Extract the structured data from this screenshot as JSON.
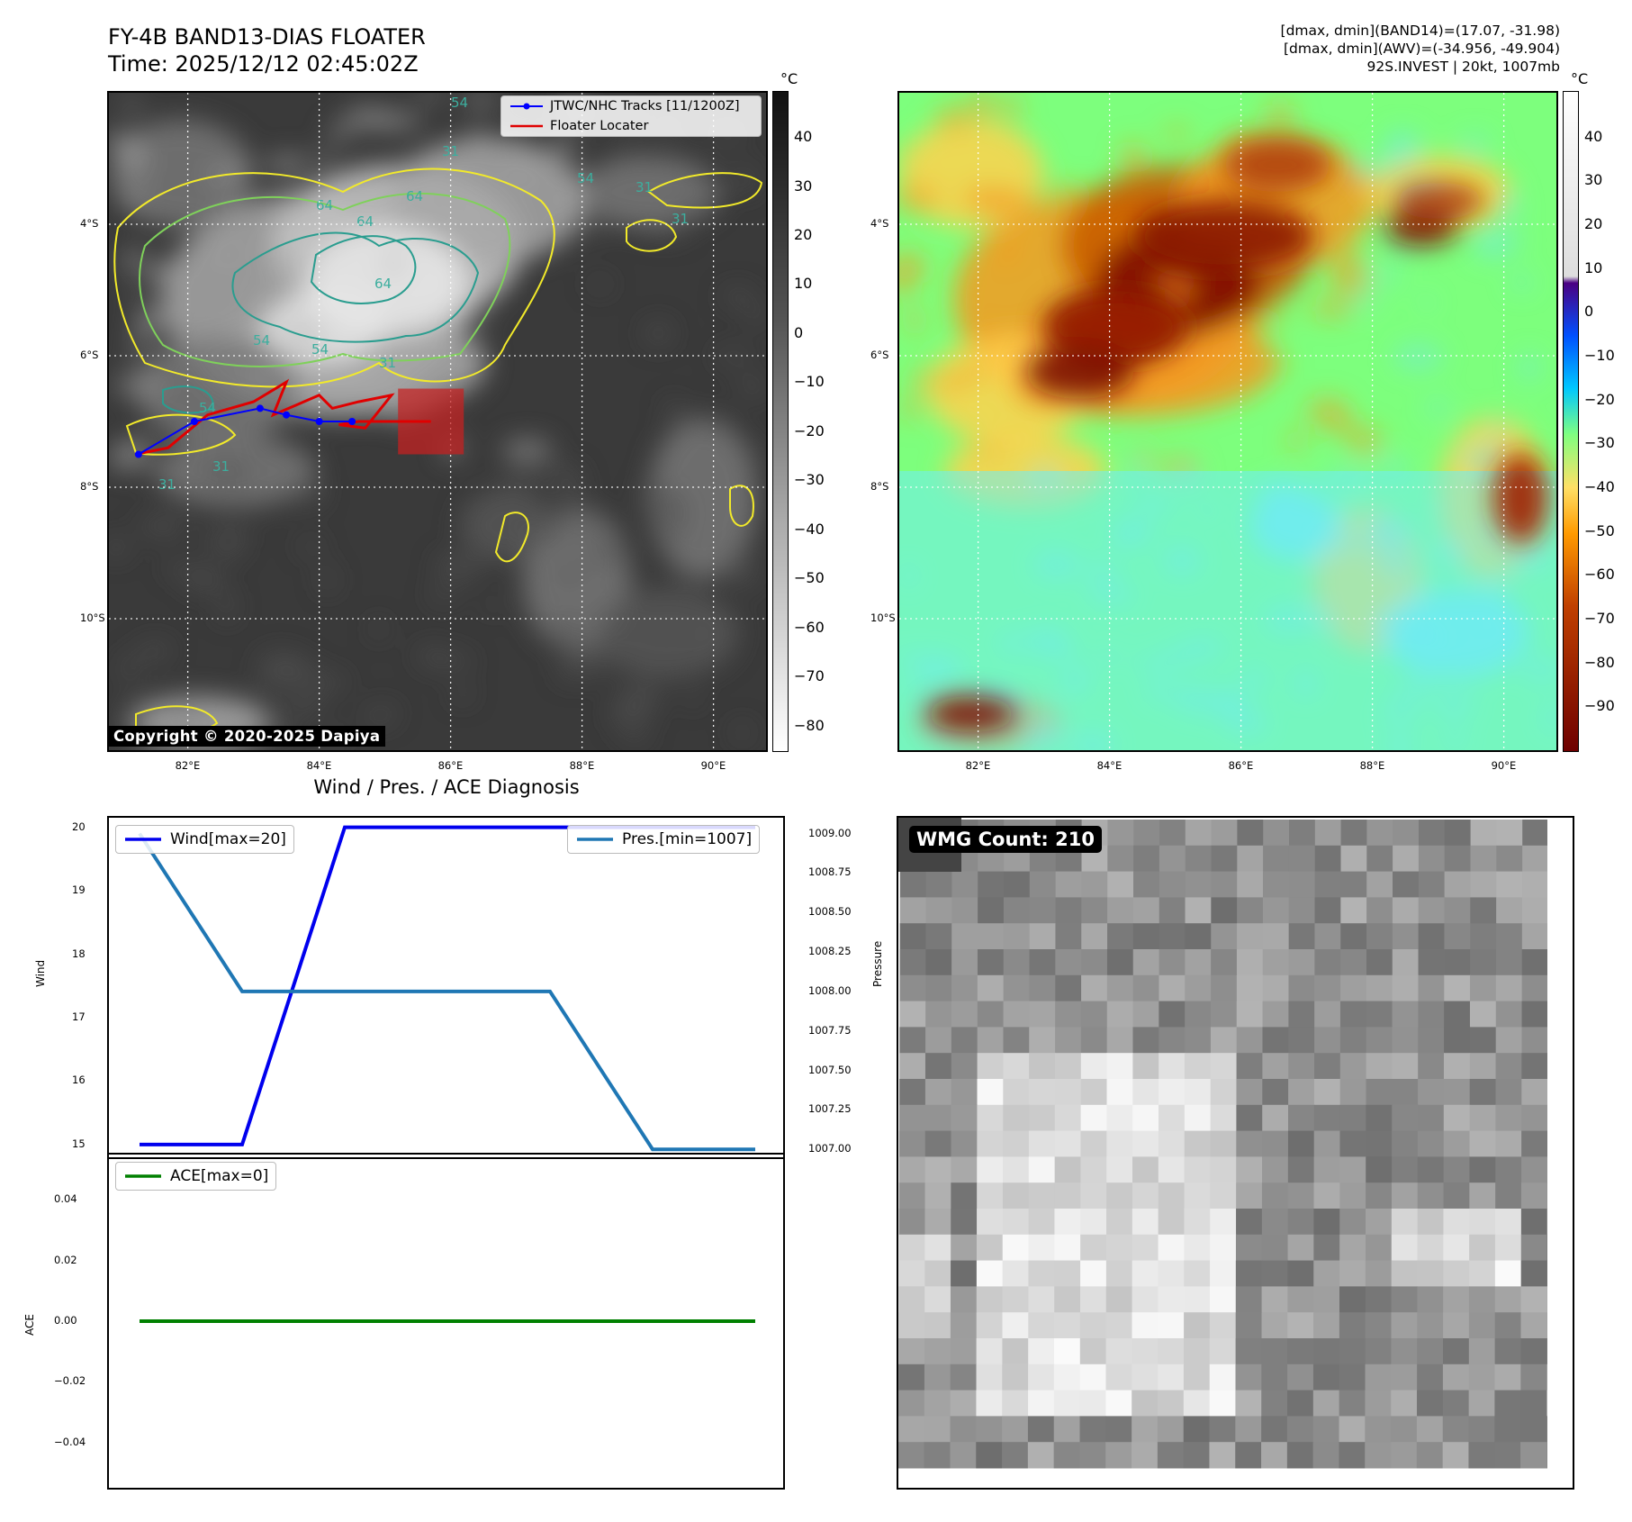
{
  "header": {
    "title_line1": "FY-4B BAND13-DIAS FLOATER",
    "title_line2": "Time: 2025/12/12 02:45:02Z",
    "right_line1": "[dmax, dmin](BAND14)=(17.07, -31.98)",
    "right_line2": "[dmax, dmin](AWV)=(-34.956, -49.904)",
    "right_line3": "92S.INVEST | 20kt, 1007mb"
  },
  "map": {
    "lon_ticks": [
      "82°E",
      "84°E",
      "86°E",
      "88°E",
      "90°E"
    ],
    "lat_ticks": [
      "4°S",
      "6°S",
      "8°S",
      "10°S"
    ],
    "lon_range": [
      80.8,
      90.8
    ],
    "lat_range": [
      -2.0,
      -12.0
    ],
    "contour_labels": [
      "54",
      "64",
      "64",
      "54",
      "64",
      "54",
      "54",
      "31",
      "31",
      "31",
      "64",
      "31",
      "54",
      "31",
      "31"
    ],
    "legend": {
      "tracks_label": "JTWC/NHC Tracks [11/1200Z]",
      "floater_label": "Floater Locater"
    },
    "track_points": [
      [
        81.25,
        -7.5
      ],
      [
        82.1,
        -7.0
      ],
      [
        83.1,
        -6.8
      ],
      [
        83.5,
        -6.9
      ],
      [
        84.0,
        -7.0
      ],
      [
        84.5,
        -7.0
      ]
    ],
    "floater_path": [
      [
        81.2,
        -7.5
      ],
      [
        81.7,
        -7.4
      ],
      [
        82.3,
        -6.9
      ],
      [
        83.0,
        -6.7
      ],
      [
        83.5,
        -6.4
      ],
      [
        83.3,
        -6.9
      ],
      [
        84.0,
        -6.6
      ],
      [
        84.2,
        -6.8
      ],
      [
        84.6,
        -6.7
      ],
      [
        85.1,
        -6.6
      ],
      [
        84.7,
        -7.1
      ],
      [
        84.3,
        -7.05
      ],
      [
        84.6,
        -7.0
      ],
      [
        85.7,
        -7.0
      ]
    ],
    "floater_box": {
      "lon": [
        85.2,
        86.2
      ],
      "lat": [
        -6.5,
        -7.5
      ]
    },
    "colors": {
      "track": "#0000ff",
      "floater": "#e00000",
      "grid": "#ffffff",
      "contour_yellow": "#f2ea2a",
      "contour_green": "#7fd15a",
      "contour_teal": "#2a9d8f"
    },
    "copyright": "Copyright © 2020-2025 Dapiya"
  },
  "colorbar_left": {
    "unit": "°C",
    "ticks": [
      "40",
      "30",
      "20",
      "10",
      "0",
      "−10",
      "−20",
      "−30",
      "−40",
      "−50",
      "−60",
      "−70",
      "−80"
    ],
    "range": [
      -85,
      49
    ]
  },
  "colorbar_right": {
    "unit": "°C",
    "ticks": [
      "40",
      "30",
      "20",
      "10",
      "0",
      "−10",
      "−20",
      "−30",
      "−40",
      "−50",
      "−60",
      "−70",
      "−80",
      "−90"
    ],
    "range": [
      -100,
      50
    ]
  },
  "chart_data": [
    {
      "type": "line",
      "title": "Wind / Pres. / ACE Diagnosis",
      "ylabel": "Wind",
      "y2label": "Pressure",
      "x": [
        0,
        1,
        2,
        3,
        4,
        5,
        6
      ],
      "series": [
        {
          "name": "Wind[max=20]",
          "axis": "left",
          "color": "#0000ee",
          "values": [
            15,
            15,
            20,
            20,
            20,
            20,
            20
          ]
        },
        {
          "name": "Pres.[min=1007]",
          "axis": "right",
          "color": "#1f77b4",
          "values": [
            1009,
            1008,
            1008,
            1008,
            1008,
            1007,
            1007
          ]
        }
      ],
      "ylim": [
        14.8,
        20.15
      ],
      "y2lim": [
        1006.95,
        1009.1
      ],
      "yticks": [
        "20",
        "19",
        "18",
        "17",
        "16",
        "15"
      ],
      "y2ticks": [
        "1009.00",
        "1008.75",
        "1008.50",
        "1008.25",
        "1008.00",
        "1007.75",
        "1007.50",
        "1007.25",
        "1007.00"
      ]
    },
    {
      "type": "line",
      "ylabel": "ACE",
      "x": [
        0,
        1,
        2,
        3,
        4,
        5,
        6
      ],
      "series": [
        {
          "name": "ACE[max=0]",
          "color": "#008000",
          "values": [
            0,
            0,
            0,
            0,
            0,
            0,
            0
          ]
        }
      ],
      "ylim": [
        -0.055,
        0.055
      ],
      "yticks": [
        "0.04",
        "0.02",
        "0.00",
        "−0.02",
        "−0.04"
      ]
    }
  ],
  "wmg": {
    "count_label": "WMG Count: 210"
  }
}
